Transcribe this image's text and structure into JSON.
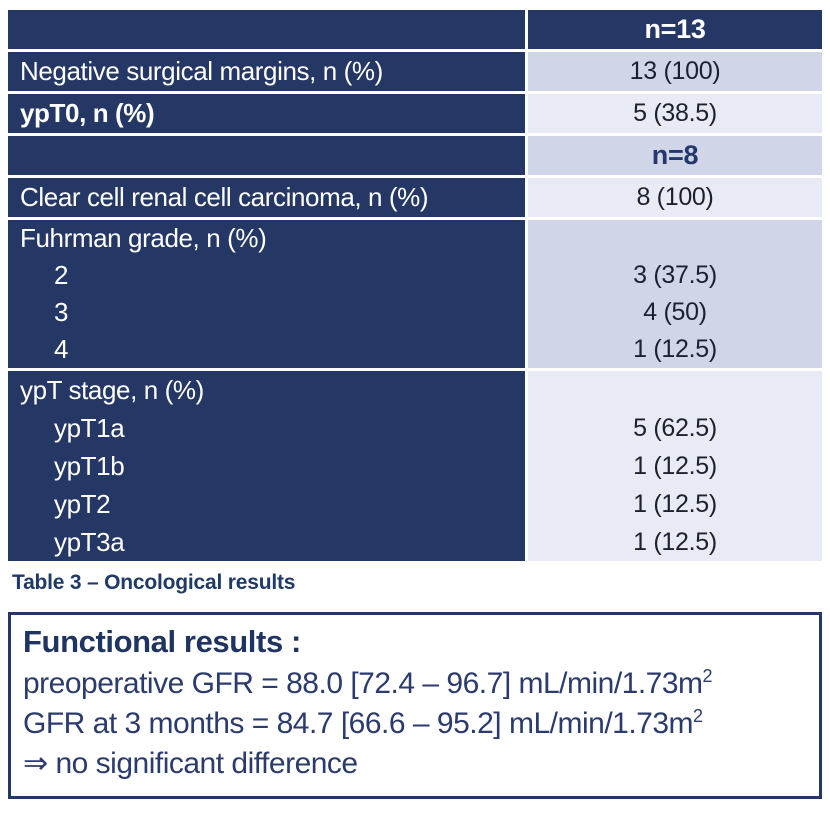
{
  "colors": {
    "navy": "#253765",
    "band_medium": "#D0D6E8",
    "band_light": "#E9EBF4",
    "value_text": "#1C212E",
    "accent_text": "#1F3460",
    "background": "#FFFFFF"
  },
  "table": {
    "rows": [
      {
        "type": "header",
        "label": "",
        "value": "n=13"
      },
      {
        "type": "data",
        "label": "Negative surgical margins, n (%)",
        "value": "13 (100)"
      },
      {
        "type": "data",
        "label": "ypT0, n (%)",
        "value": "5 (38.5)"
      },
      {
        "type": "subheader",
        "label": "",
        "value": "n=8"
      },
      {
        "type": "data",
        "label": "Clear cell renal cell carcinoma, n (%)",
        "value": "8 (100)"
      },
      {
        "type": "group",
        "label": "Fuhrman grade, n (%)",
        "items": [
          {
            "label": "2",
            "value": "3 (37.5)"
          },
          {
            "label": "3",
            "value": "4 (50)"
          },
          {
            "label": "4",
            "value": "1 (12.5)"
          }
        ]
      },
      {
        "type": "group",
        "label": "ypT stage, n (%)",
        "items": [
          {
            "label": "ypT1a",
            "value": "5 (62.5)"
          },
          {
            "label": "ypT1b",
            "value": "1 (12.5)"
          },
          {
            "label": "ypT2",
            "value": "1 (12.5)"
          },
          {
            "label": "ypT3a",
            "value": "1 (12.5)"
          }
        ]
      }
    ]
  },
  "caption": "Table 3 – Oncological results",
  "functional_box": {
    "title": "Functional results :",
    "line1": {
      "body": "preoperative GFR = 88.0 [72.4 – 96.7] mL/min/1.73m",
      "sup": "2"
    },
    "line2": {
      "body": "GFR at 3 months = 84.7 [66.6 – 95.2] mL/min/1.73m",
      "sup": "2"
    },
    "line3": {
      "body": "⇒ no significant difference"
    }
  }
}
